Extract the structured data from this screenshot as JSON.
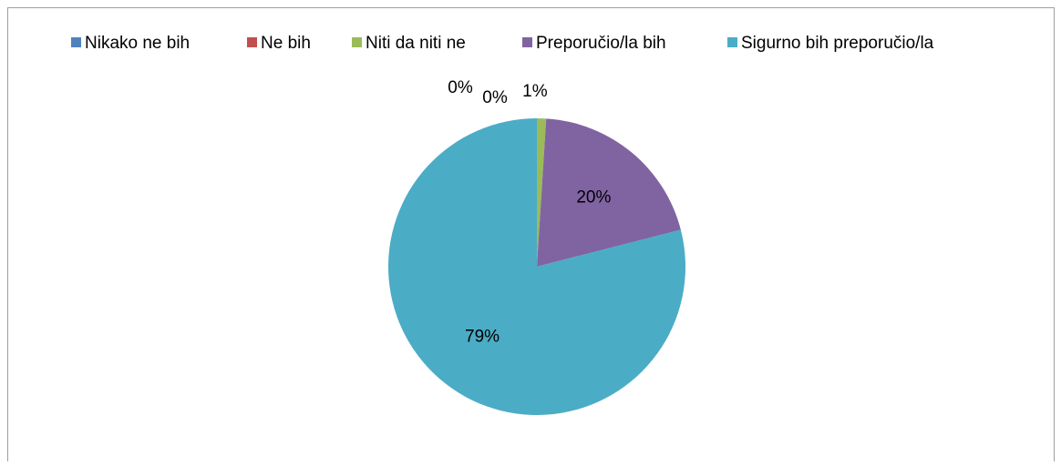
{
  "chart_data": {
    "type": "pie",
    "categories": [
      "Nikako ne bih",
      "Ne bih",
      "Niti da niti ne",
      "Preporučio/la bih",
      "Sigurno bih preporučio/la"
    ],
    "values": [
      0,
      0,
      1,
      20,
      79
    ],
    "value_labels": [
      "0%",
      "0%",
      "1%",
      "20%",
      "79%"
    ],
    "colors": [
      "#4f81bd",
      "#c0504d",
      "#9bbb59",
      "#8064a2",
      "#4bacc6"
    ],
    "legend": "top"
  }
}
